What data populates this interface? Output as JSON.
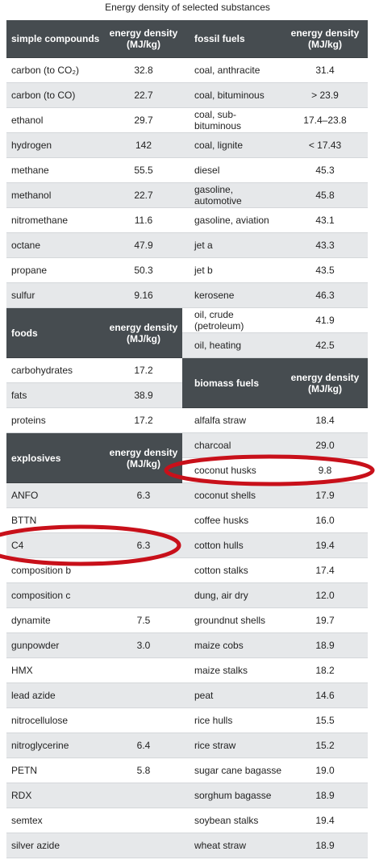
{
  "title": "Energy density of selected substances",
  "left": {
    "sections": [
      {
        "header": [
          "simple compounds",
          "energy density (MJ/kg)"
        ],
        "rows": [
          [
            "carbon (to CO₂)",
            "32.8"
          ],
          [
            "carbon (to CO)",
            "22.7"
          ],
          [
            "ethanol",
            "29.7"
          ],
          [
            "hydrogen",
            "142"
          ],
          [
            "methane",
            "55.5"
          ],
          [
            "methanol",
            "22.7"
          ],
          [
            "nitromethane",
            "11.6"
          ],
          [
            "octane",
            "47.9"
          ],
          [
            "propane",
            "50.3"
          ],
          [
            "sulfur",
            "9.16"
          ]
        ]
      },
      {
        "header": [
          "foods",
          "energy density (MJ/kg)"
        ],
        "rows": [
          [
            "carbohydrates",
            "17.2"
          ],
          [
            "fats",
            "38.9"
          ],
          [
            "proteins",
            "17.2"
          ]
        ]
      },
      {
        "header": [
          "explosives",
          "energy density (MJ/kg)"
        ],
        "rows": [
          [
            "ANFO",
            "6.3"
          ],
          [
            "BTTN"
          ],
          [
            "C4",
            "6.3"
          ],
          [
            "composition b"
          ],
          [
            "composition c"
          ],
          [
            "dynamite",
            "7.5"
          ],
          [
            "gunpowder",
            "3.0"
          ],
          [
            "HMX"
          ],
          [
            "lead azide"
          ],
          [
            "nitrocellulose"
          ],
          [
            "nitroglycerine",
            "6.4"
          ],
          [
            "PETN",
            "5.8"
          ],
          [
            "RDX"
          ],
          [
            "semtex"
          ],
          [
            "silver azide"
          ]
        ]
      }
    ]
  },
  "right": {
    "sections": [
      {
        "header": [
          "fossil fuels",
          "energy density (MJ/kg)"
        ],
        "rows": [
          [
            "coal, anthracite",
            "31.4"
          ],
          [
            "coal, bituminous",
            "> 23.9"
          ],
          [
            "coal, sub-bituminous",
            "17.4–23.8"
          ],
          [
            "coal, lignite",
            "< 17.43"
          ],
          [
            "diesel",
            "45.3"
          ],
          [
            "gasoline, automotive",
            "45.8"
          ],
          [
            "gasoline, aviation",
            "43.1"
          ],
          [
            "jet a",
            "43.3"
          ],
          [
            "jet b",
            "43.5"
          ],
          [
            "kerosene",
            "46.3"
          ],
          [
            "oil, crude (petroleum)",
            "41.9"
          ],
          [
            "oil, heating",
            "42.5"
          ]
        ]
      },
      {
        "header": [
          "biomass fuels",
          "energy density (MJ/kg)"
        ],
        "rows": [
          [
            "alfalfa straw",
            "18.4"
          ],
          [
            "charcoal",
            "29.0"
          ],
          [
            "coconut husks",
            "9.8"
          ],
          [
            "coconut shells",
            "17.9"
          ],
          [
            "coffee husks",
            "16.0"
          ],
          [
            "cotton hulls",
            "19.4"
          ],
          [
            "cotton stalks",
            "17.4"
          ],
          [
            "dung, air dry",
            "12.0"
          ],
          [
            "groundnut shells",
            "19.7"
          ],
          [
            "maize cobs",
            "18.9"
          ],
          [
            "maize stalks",
            "18.2"
          ],
          [
            "peat",
            "14.6"
          ],
          [
            "rice hulls",
            "15.5"
          ],
          [
            "rice straw",
            "15.2"
          ],
          [
            "sugar cane bagasse",
            "19.0"
          ],
          [
            "sorghum bagasse",
            "18.9"
          ],
          [
            "soybean stalks",
            "19.4"
          ],
          [
            "wheat straw",
            "18.9"
          ]
        ]
      }
    ]
  }
}
